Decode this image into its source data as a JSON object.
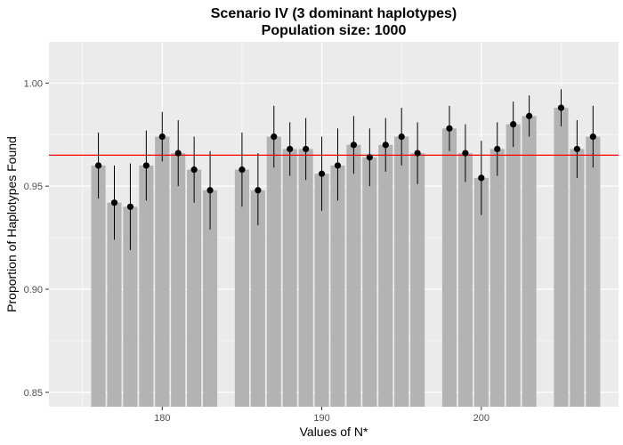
{
  "chart_data": {
    "type": "bar",
    "title": "Scenario IV (3 dominant haplotypes)",
    "subtitle": "Population size: 1000",
    "xlabel": "Values of N*",
    "ylabel": "Proportion of Haplotypes Found",
    "xlim": [
      172.9,
      208.6
    ],
    "ylim": [
      0.843,
      1.02
    ],
    "x_ticks": [
      180,
      190,
      200
    ],
    "x_tick_labels": [
      "180",
      "190",
      "200"
    ],
    "y_ticks": [
      0.85,
      0.9,
      0.95,
      1.0
    ],
    "y_tick_labels": [
      "0.85",
      "0.90",
      "0.95",
      "1.00"
    ],
    "grid": true,
    "reference_line": 0.965,
    "colors": {
      "panel": "#ebebeb",
      "grid_major": "#ffffff",
      "bar": "#b3b3b3",
      "point": "#000000",
      "reference_line": "#ff0000"
    },
    "points": [
      {
        "x": 176,
        "y": 0.96,
        "lo": 0.944,
        "hi": 0.976
      },
      {
        "x": 177,
        "y": 0.942,
        "lo": 0.924,
        "hi": 0.96
      },
      {
        "x": 178,
        "y": 0.94,
        "lo": 0.919,
        "hi": 0.961
      },
      {
        "x": 179,
        "y": 0.96,
        "lo": 0.943,
        "hi": 0.977
      },
      {
        "x": 180,
        "y": 0.974,
        "lo": 0.962,
        "hi": 0.986
      },
      {
        "x": 181,
        "y": 0.966,
        "lo": 0.95,
        "hi": 0.982
      },
      {
        "x": 182,
        "y": 0.958,
        "lo": 0.942,
        "hi": 0.974
      },
      {
        "x": 183,
        "y": 0.948,
        "lo": 0.929,
        "hi": 0.967
      },
      {
        "x": 185,
        "y": 0.958,
        "lo": 0.94,
        "hi": 0.976
      },
      {
        "x": 186,
        "y": 0.948,
        "lo": 0.931,
        "hi": 0.966
      },
      {
        "x": 187,
        "y": 0.974,
        "lo": 0.959,
        "hi": 0.989
      },
      {
        "x": 188,
        "y": 0.968,
        "lo": 0.955,
        "hi": 0.981
      },
      {
        "x": 189,
        "y": 0.968,
        "lo": 0.953,
        "hi": 0.983
      },
      {
        "x": 190,
        "y": 0.956,
        "lo": 0.938,
        "hi": 0.974
      },
      {
        "x": 191,
        "y": 0.96,
        "lo": 0.943,
        "hi": 0.978
      },
      {
        "x": 192,
        "y": 0.97,
        "lo": 0.956,
        "hi": 0.984
      },
      {
        "x": 193,
        "y": 0.964,
        "lo": 0.95,
        "hi": 0.978
      },
      {
        "x": 194,
        "y": 0.97,
        "lo": 0.957,
        "hi": 0.983
      },
      {
        "x": 195,
        "y": 0.974,
        "lo": 0.96,
        "hi": 0.988
      },
      {
        "x": 196,
        "y": 0.966,
        "lo": 0.951,
        "hi": 0.981
      },
      {
        "x": 198,
        "y": 0.978,
        "lo": 0.967,
        "hi": 0.989
      },
      {
        "x": 199,
        "y": 0.966,
        "lo": 0.952,
        "hi": 0.98
      },
      {
        "x": 200,
        "y": 0.954,
        "lo": 0.936,
        "hi": 0.972
      },
      {
        "x": 201,
        "y": 0.968,
        "lo": 0.955,
        "hi": 0.981
      },
      {
        "x": 202,
        "y": 0.98,
        "lo": 0.969,
        "hi": 0.991
      },
      {
        "x": 203,
        "y": 0.984,
        "lo": 0.974,
        "hi": 0.994
      },
      {
        "x": 205,
        "y": 0.988,
        "lo": 0.979,
        "hi": 0.997
      },
      {
        "x": 206,
        "y": 0.968,
        "lo": 0.954,
        "hi": 0.982
      },
      {
        "x": 207,
        "y": 0.974,
        "lo": 0.959,
        "hi": 0.989
      }
    ]
  }
}
